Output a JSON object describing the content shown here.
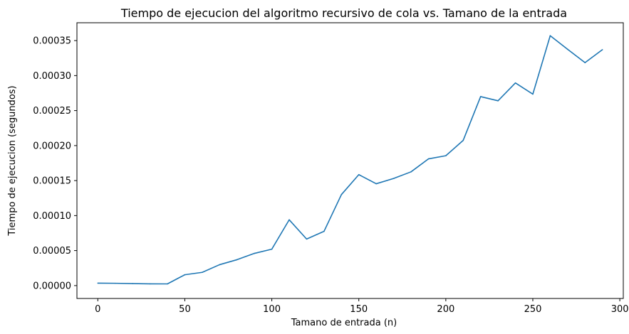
{
  "chart_data": {
    "type": "line",
    "title": "Tiempo de ejecucion del algoritmo recursivo de cola vs. Tamano de la entrada",
    "xlabel": "Tamano de entrada (n)",
    "ylabel": "Tiempo de ejecucion (segundos)",
    "xlim": [
      -12,
      302
    ],
    "ylim": [
      -1.84e-05,
      0.0003755
    ],
    "grid": false,
    "color": "#1f77b4",
    "x_ticks": [
      0,
      50,
      100,
      150,
      200,
      250,
      300
    ],
    "x_tick_labels": [
      "0",
      "50",
      "100",
      "150",
      "200",
      "250",
      "300"
    ],
    "y_ticks": [
      0.0,
      5e-05,
      0.0001,
      0.00015,
      0.0002,
      0.00025,
      0.0003,
      0.00035
    ],
    "y_tick_labels": [
      "0.00000",
      "0.00005",
      "0.00010",
      "0.00015",
      "0.00020",
      "0.00025",
      "0.00030",
      "0.00035"
    ],
    "x": [
      0,
      10,
      20,
      30,
      40,
      50,
      60,
      70,
      80,
      90,
      100,
      110,
      120,
      130,
      140,
      150,
      160,
      170,
      180,
      190,
      200,
      210,
      220,
      230,
      240,
      250,
      260,
      270,
      280,
      290
    ],
    "y": [
      3.5e-06,
      3.3e-06,
      2.9e-06,
      2.5e-06,
      2.4e-06,
      1.55e-05,
      1.89e-05,
      2.99e-05,
      3.7e-05,
      4.6e-05,
      5.2e-05,
      9.4e-05,
      6.65e-05,
      7.75e-05,
      0.00013,
      0.0001585,
      0.0001455,
      0.000153,
      0.0001625,
      0.000181,
      0.0001855,
      0.0002075,
      0.00027,
      0.000264,
      0.0002895,
      0.0002735,
      0.000357,
      0.0003375,
      0.0003185,
      0.000337
    ]
  }
}
